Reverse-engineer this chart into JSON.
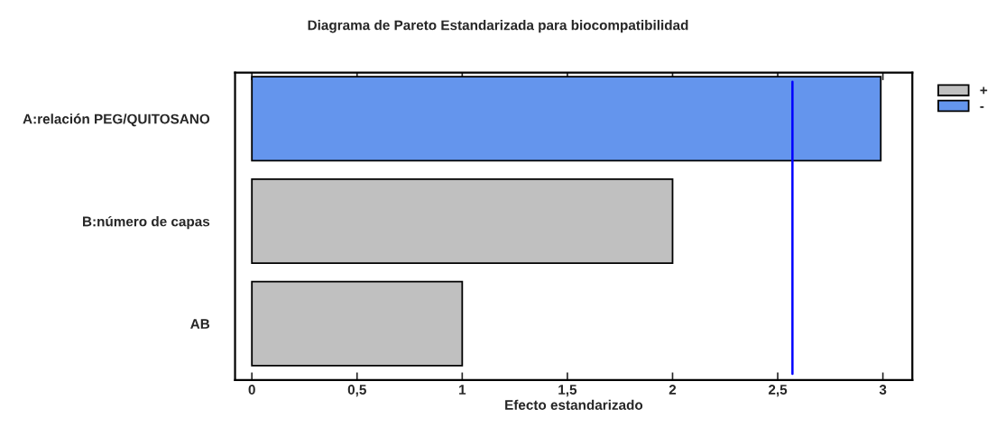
{
  "chart_data": {
    "type": "bar",
    "orientation": "horizontal",
    "title": "Diagrama de Pareto Estandarizada para biocompatibilidad",
    "xlabel": "Efecto estandarizado",
    "categories": [
      "A:relación PEG/QUITOSANO",
      "B:número de capas",
      "AB"
    ],
    "series": [
      {
        "name": "+",
        "color": "#c0c0c0",
        "values": [
          null,
          2.0,
          1.0
        ]
      },
      {
        "name": "-",
        "color": "#6495ed",
        "values": [
          2.99,
          null,
          null
        ]
      }
    ],
    "xlim": [
      -0.08,
      3.14
    ],
    "xticks": [
      0,
      {
        "value": 0.5,
        "label": "0,5"
      },
      1,
      {
        "value": 1.5,
        "label": "1,5"
      },
      2,
      {
        "value": 2.5,
        "label": "2,5"
      },
      3
    ],
    "ref_lines": [
      {
        "axis": "x",
        "value": 2.57,
        "color": "#0000ff"
      }
    ],
    "legend": "right",
    "grid": false
  }
}
